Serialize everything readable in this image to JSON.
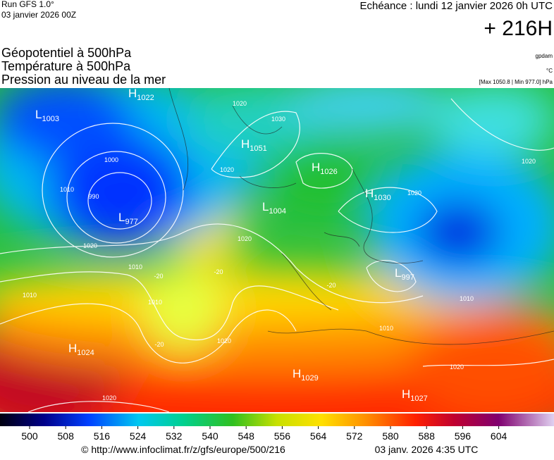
{
  "header": {
    "run": "Run GFS 1.0°",
    "run_date": "03 janvier 2026 00Z",
    "valid": "Echéance : lundi 12 janvier 2026 0h UTC",
    "lead": "+ 216H"
  },
  "legend": {
    "fields": [
      "Géopotentiel à 500hPa",
      "Température à 500hPa",
      "Pression au niveau de la mer"
    ],
    "units": [
      "gpdam",
      "°C",
      "[Max 1050.8 | Min 977.0] hPa"
    ]
  },
  "centers": [
    {
      "kind": "H",
      "value": 1022
    },
    {
      "kind": "L",
      "value": 1003
    },
    {
      "kind": "H",
      "value": 1051
    },
    {
      "kind": "H",
      "value": 1026
    },
    {
      "kind": "H",
      "value": 1030
    },
    {
      "kind": "L",
      "value": 1004
    },
    {
      "kind": "L",
      "value": 977
    },
    {
      "kind": "L",
      "value": 997
    },
    {
      "kind": "H",
      "value": 1024
    },
    {
      "kind": "H",
      "value": 1029
    },
    {
      "kind": "H",
      "value": 1027
    }
  ],
  "contour_labels": [
    1020,
    1030,
    1000,
    990,
    1010,
    1020,
    1020,
    1020,
    1010,
    1010,
    1010,
    1020,
    1020,
    1020,
    1010,
    1010,
    1020,
    1020,
    -20,
    -20,
    -20,
    -20
  ],
  "colorbar": {
    "ticks": [
      500,
      508,
      516,
      524,
      532,
      540,
      548,
      556,
      564,
      572,
      580,
      588,
      596,
      604
    ]
  },
  "footer": {
    "url": "© http://www.infoclimat.fr/z/gfs/europe/500/216",
    "timestamp": "03 janv. 2026  4:35 UTC"
  }
}
